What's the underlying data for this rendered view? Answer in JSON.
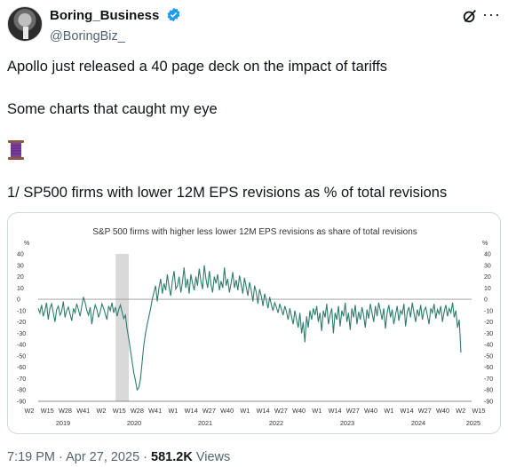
{
  "user": {
    "display_name": "Boring_Business",
    "handle": "@BoringBiz_"
  },
  "tweet": {
    "line1": "Apollo just released a 40 page deck on the impact of tariffs",
    "line2": "Some charts that caught my eye",
    "emoji_icon": "thread-spool-icon",
    "line4": "1/ SP500 firms with lower 12M EPS revisions as % of total revisions"
  },
  "footer": {
    "time": "7:19 PM",
    "sep1": " · ",
    "date": "Apr 27, 2025",
    "sep2": " · ",
    "views_count": "581.2K",
    "views_label": " Views"
  },
  "colors": {
    "verified": "#1d9bf0",
    "line": "#2e7d6e",
    "recession": "#d9d9d9"
  },
  "chart_data": {
    "type": "line",
    "title": "S&P 500 firms with higher less lower 12M EPS revisions as share of total revisions",
    "y_unit_label": "%",
    "ylim": [
      -90,
      40
    ],
    "yticks": [
      40,
      30,
      20,
      10,
      0,
      -10,
      -20,
      -30,
      -40,
      -50,
      -60,
      -70,
      -80,
      -90
    ],
    "xticks": [
      "W2",
      "W15",
      "W28",
      "W41",
      "W2",
      "W15",
      "W28",
      "W41",
      "W1",
      "W14",
      "W27",
      "W40",
      "W1",
      "W14",
      "W27",
      "W40",
      "W1",
      "W14",
      "W27",
      "W40",
      "W1",
      "W14",
      "W27",
      "W40",
      "W2",
      "W15"
    ],
    "year_labels": [
      "2019",
      "2020",
      "2021",
      "2022",
      "2023",
      "2024",
      "2025"
    ],
    "shaded_period": "2020 W8 – 2020 W17",
    "series": [
      {
        "weeks_start": "2019 W1",
        "values": [
          -8,
          -12,
          -5,
          -15,
          -10,
          -3,
          -18,
          -8,
          -4,
          -12,
          -20,
          -9,
          -6,
          -14,
          -11,
          -2,
          -16,
          -10,
          -7,
          -13,
          -19,
          -8,
          -12,
          -4,
          -9,
          -15,
          -6,
          2,
          -3,
          -10,
          -14,
          -7,
          -22,
          -12,
          -5,
          -9,
          -16,
          -11,
          -4,
          -8,
          -13,
          -18,
          -6,
          -10,
          -3,
          -12,
          -7,
          -15,
          -9,
          -5,
          -11,
          -17,
          -14,
          -26,
          -35,
          -45,
          -55,
          -65,
          -72,
          -80,
          -78,
          -70,
          -55,
          -40,
          -30,
          -22,
          -15,
          -8,
          0,
          6,
          12,
          -2,
          10,
          18,
          5,
          14,
          8,
          22,
          11,
          3,
          16,
          25,
          9,
          12,
          20,
          6,
          15,
          28,
          10,
          18,
          5,
          22,
          14,
          8,
          20,
          12,
          27,
          16,
          9,
          30,
          18,
          10,
          25,
          13,
          6,
          20,
          14,
          22,
          8,
          16,
          10,
          28,
          12,
          18,
          6,
          14,
          24,
          10,
          17,
          8,
          21,
          13,
          5,
          19,
          11,
          3,
          15,
          8,
          -2,
          12,
          6,
          -4,
          9,
          3,
          -6,
          5,
          -1,
          -8,
          2,
          -5,
          -10,
          -3,
          -7,
          -12,
          -4,
          -9,
          -14,
          -6,
          -11,
          -18,
          -8,
          -15,
          -22,
          -10,
          -18,
          -25,
          -12,
          -30,
          -20,
          -38,
          -15,
          -25,
          -10,
          -18,
          -8,
          -14,
          -6,
          -20,
          -12,
          -28,
          -10,
          -16,
          -4,
          -22,
          -14,
          -8,
          -30,
          -12,
          -18,
          -6,
          -24,
          -10,
          -15,
          -3,
          -20,
          -12,
          -27,
          -8,
          -16,
          -5,
          -22,
          -11,
          -18,
          -7,
          -14,
          -25,
          -9,
          -17,
          -4,
          -12,
          -20,
          -6,
          -15,
          -3,
          -10,
          -18,
          -8,
          -26,
          -12,
          -5,
          -16,
          -9,
          -22,
          -14,
          -6,
          -19,
          -10,
          -13,
          -4,
          -24,
          -11,
          -7,
          -16,
          -3,
          -12,
          -20,
          -9,
          -15,
          -5,
          -18,
          -10,
          -7,
          -14,
          -22,
          -8,
          -12,
          -4,
          -17,
          -9,
          -13,
          -6,
          -20,
          -11,
          -5,
          -15,
          -8,
          -12,
          -3,
          -16,
          -10,
          -25,
          -18,
          -47
        ]
      }
    ]
  }
}
